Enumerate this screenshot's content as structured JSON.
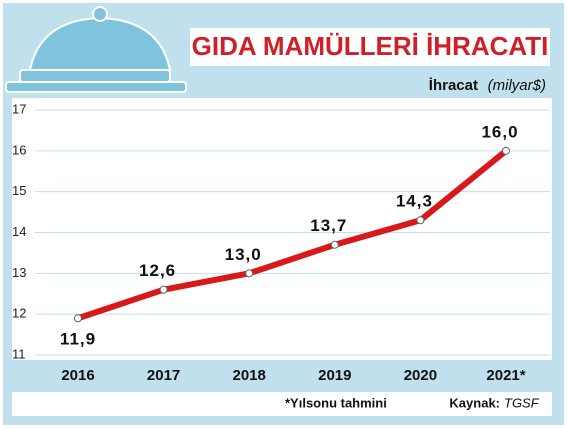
{
  "chart_data": {
    "type": "line",
    "title": "GIDA MAMÜLLERİ İHRACATI",
    "ylabel": "İhracat",
    "yunit": "(milyar$)",
    "categories": [
      "2016",
      "2017",
      "2018",
      "2019",
      "2020",
      "2021*"
    ],
    "values": [
      11.9,
      12.6,
      13.0,
      13.7,
      14.3,
      16.0
    ],
    "value_labels": [
      "11,9",
      "12,6",
      "13,0",
      "13,7",
      "14,3",
      "16,0"
    ],
    "color": "#d7191c",
    "ylim": [
      11,
      17
    ],
    "yticks": [
      11,
      12,
      13,
      14,
      15,
      16,
      17
    ],
    "grid": true,
    "footnote": "*Yılsonu tahmini",
    "source_label": "Kaynak:",
    "source": "TGSF"
  }
}
